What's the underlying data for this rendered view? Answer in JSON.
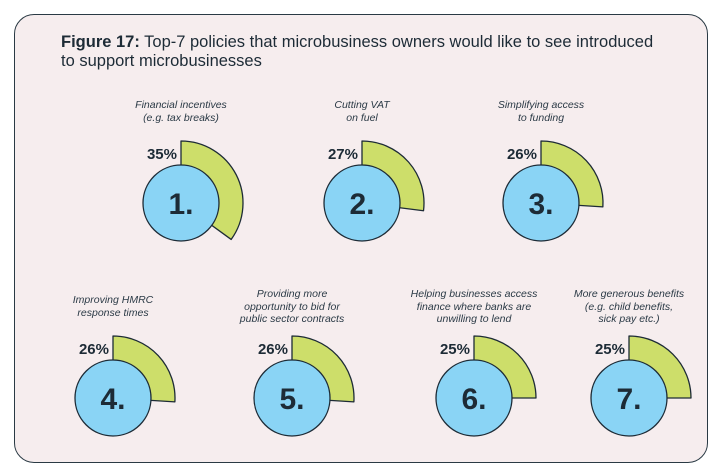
{
  "title": {
    "prefix": "Figure 17:",
    "text": " Top-7 policies that microbusiness owners would like to see introduced to support microbusinesses"
  },
  "colors": {
    "circle": "#8ad4f5",
    "sector": "#cdde6a",
    "stroke": "#1d2b36",
    "background": "#f6edee"
  },
  "chart_data": {
    "type": "pie",
    "title": "Figure 17: Top-7 policies that microbusiness owners would like to see introduced to support microbusinesses",
    "unit": "%",
    "categories": [
      "Financial incentives (e.g. tax breaks)",
      "Cutting VAT on fuel",
      "Simplifying access to funding",
      "Improving HMRC response times",
      "Providing more opportunity to bid for public sector contracts",
      "Helping businesses access finance where banks are unwilling to lend",
      "More generous benefits (e.g. child benefits, sick pay etc.)"
    ],
    "values": [
      35,
      27,
      26,
      26,
      26,
      25,
      25
    ],
    "items": [
      {
        "rank": "1.",
        "value": 35,
        "value_label": "35%",
        "label_lines": [
          "Financial incentives",
          "(e.g. tax breaks)"
        ]
      },
      {
        "rank": "2.",
        "value": 27,
        "value_label": "27%",
        "label_lines": [
          "Cutting VAT",
          "on fuel"
        ]
      },
      {
        "rank": "3.",
        "value": 26,
        "value_label": "26%",
        "label_lines": [
          "Simplifying access",
          "to funding"
        ]
      },
      {
        "rank": "4.",
        "value": 26,
        "value_label": "26%",
        "label_lines": [
          "Improving HMRC",
          "response times"
        ]
      },
      {
        "rank": "5.",
        "value": 26,
        "value_label": "26%",
        "label_lines": [
          "Providing more",
          "opportunity to bid for",
          "public sector contracts"
        ]
      },
      {
        "rank": "6.",
        "value": 25,
        "value_label": "25%",
        "label_lines": [
          "Helping businesses access",
          "finance where banks are",
          "unwilling to lend"
        ]
      },
      {
        "rank": "7.",
        "value": 25,
        "value_label": "25%",
        "label_lines": [
          "More generous benefits",
          "(e.g. child benefits,",
          "sick pay etc.)"
        ]
      }
    ]
  }
}
